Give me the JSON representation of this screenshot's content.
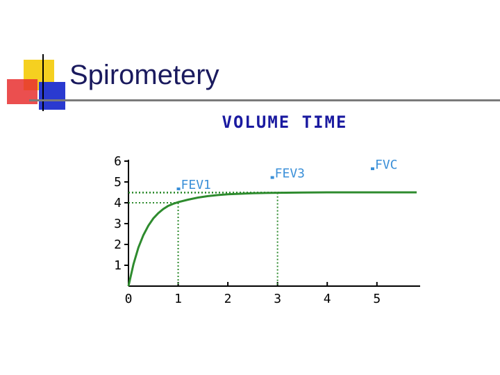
{
  "slide": {
    "title": "Spirometery"
  },
  "colors": {
    "title": "#1a1a5e",
    "chart_title": "#1a1aa0",
    "curve": "#2e8b2e",
    "label": "#3a8fd8",
    "axis": "#000000",
    "logo_yellow": "#f5d020",
    "logo_red": "#e83030",
    "logo_blue": "#2a3ad0"
  },
  "chart_data": {
    "type": "line",
    "title": "VOLUME TIME",
    "xlabel": "",
    "ylabel": "",
    "xlim": [
      0,
      5.8
    ],
    "ylim": [
      0,
      6
    ],
    "x_ticks": [
      "0",
      "1",
      "2",
      "3",
      "4",
      "5"
    ],
    "y_ticks": [
      "1",
      "2",
      "3",
      "4",
      "5",
      "6"
    ],
    "grid": false,
    "series": [
      {
        "x": [
          0,
          0.1,
          0.2,
          0.3,
          0.4,
          0.5,
          0.6,
          0.7,
          0.8,
          0.9,
          1.0,
          1.2,
          1.4,
          1.6,
          1.8,
          2.0,
          2.5,
          3.0,
          3.5,
          4.0,
          4.5,
          5.0,
          5.8
        ],
        "y": [
          0,
          1.05,
          1.85,
          2.45,
          2.9,
          3.25,
          3.5,
          3.7,
          3.85,
          3.95,
          4.03,
          4.15,
          4.25,
          4.32,
          4.37,
          4.41,
          4.46,
          4.48,
          4.49,
          4.5,
          4.5,
          4.5,
          4.5
        ]
      }
    ],
    "annotations": [
      {
        "text": "FEV1",
        "x": 1.0,
        "y": 4.0
      },
      {
        "text": "FEV3",
        "x": 3.0,
        "y": 4.48
      },
      {
        "text": "FVC",
        "x": 5.8,
        "y": 4.5
      }
    ]
  }
}
